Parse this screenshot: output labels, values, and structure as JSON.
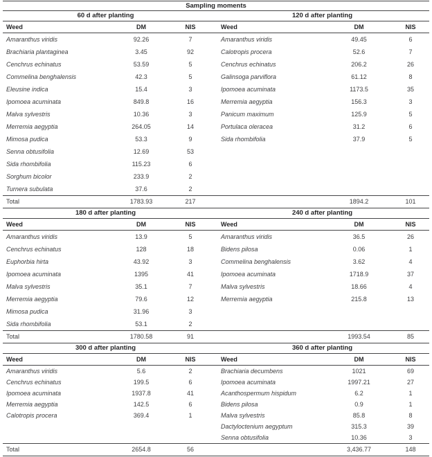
{
  "table": {
    "title": "Sampling moments",
    "col_headers": {
      "weed": "Weed",
      "dm": "DM",
      "nis": "NIS"
    },
    "total_label": "Total",
    "sections": [
      {
        "left": {
          "heading": "60 d after planting",
          "rows": [
            [
              "Amaranthus viridis",
              "92.26",
              "7"
            ],
            [
              "Brachiaria plantaginea",
              "3.45",
              "92"
            ],
            [
              "Cenchrus echinatus",
              "53.59",
              "5"
            ],
            [
              "Commelina benghalensis",
              "42.3",
              "5"
            ],
            [
              "Eleusine indica",
              "15.4",
              "3"
            ],
            [
              "Ipomoea acuminata",
              "849.8",
              "16"
            ],
            [
              "Malva sylvestris",
              "10.36",
              "3"
            ],
            [
              "Merremia aegyptia",
              "264.05",
              "14"
            ],
            [
              "Mimosa pudica",
              "53.3",
              "9"
            ],
            [
              "Senna obtusifolia",
              "12.69",
              "53"
            ],
            [
              "Sida rhombifolia",
              "115.23",
              "6"
            ],
            [
              "Sorghum bicolor",
              "233.9",
              "2"
            ],
            [
              "Turnera subulata",
              "37.6",
              "2"
            ]
          ],
          "total": [
            "1783.93",
            "217"
          ]
        },
        "right": {
          "heading": "120 d after planting",
          "rows": [
            [
              "Amaranthus viridis",
              "49.45",
              "6"
            ],
            [
              "Calotropis procera",
              "52.6",
              "7"
            ],
            [
              "Cenchrus echinatus",
              "206.2",
              "26"
            ],
            [
              "Galinsoga parviflora",
              "61.12",
              "8"
            ],
            [
              "Ipomoea acuminata",
              "1173.5",
              "35"
            ],
            [
              "Merremia aegyptia",
              "156.3",
              "3"
            ],
            [
              "Panicum maximum",
              "125.9",
              "5"
            ],
            [
              "Portulaca oleracea",
              "31.2",
              "6"
            ],
            [
              "Sida rhombifolia",
              "37.9",
              "5"
            ]
          ],
          "total": [
            "1894.2",
            "101"
          ]
        }
      },
      {
        "left": {
          "heading": "180 d after planting",
          "rows": [
            [
              "Amaranthus viridis",
              "13.9",
              "5"
            ],
            [
              "Cenchrus echinatus",
              "128",
              "18"
            ],
            [
              "Euphorbia hirta",
              "43.92",
              "3"
            ],
            [
              "Ipomoea acuminata",
              "1395",
              "41"
            ],
            [
              "Malva sylvestris",
              "35.1",
              "7"
            ],
            [
              "Merremia aegyptia",
              "79.6",
              "12"
            ],
            [
              "Mimosa pudica",
              "31.96",
              "3"
            ],
            [
              "Sida rhombifolia",
              "53.1",
              "2"
            ]
          ],
          "total": [
            "1780.58",
            "91"
          ]
        },
        "right": {
          "heading": "240 d after planting",
          "rows": [
            [
              "Amaranthus viridis",
              "36.5",
              "26"
            ],
            [
              "Bidens pilosa",
              "0.06",
              "1"
            ],
            [
              "Commelina benghalensis",
              "3.62",
              "4"
            ],
            [
              "Ipomoea acuminata",
              "1718.9",
              "37"
            ],
            [
              "Malva sylvestris",
              "18.66",
              "4"
            ],
            [
              "Merremia aegyptia",
              "215.8",
              "13"
            ]
          ],
          "total": [
            "1993.54",
            "85"
          ]
        }
      },
      {
        "left": {
          "heading": "300 d after planting",
          "rows": [
            [
              "Amaranthus viridis",
              "5.6",
              "2"
            ],
            [
              "Cenchrus echinatus",
              "199.5",
              "6"
            ],
            [
              "Ipomoea acuminata",
              "1937.8",
              "41"
            ],
            [
              "Merremia aegyptia",
              "142.5",
              "6"
            ],
            [
              "Calotropis procera",
              "369.4",
              "1"
            ]
          ],
          "total": [
            "2654.8",
            "56"
          ]
        },
        "right": {
          "heading": "360 d after planting",
          "rows": [
            [
              "Brachiaria decumbens",
              "1021",
              "69"
            ],
            [
              "Ipomoea acuminata",
              "1997.21",
              "27"
            ],
            [
              "Acanthospermum hispidum",
              "6.2",
              "1"
            ],
            [
              "Bidens pilosa",
              "0.9",
              "1"
            ],
            [
              "Malva sylvestris",
              "85.8",
              "8"
            ],
            [
              "Dactyloctenium aegyptum",
              "315.3",
              "39"
            ],
            [
              "Senna obtusifolia",
              "10.36",
              "3"
            ]
          ],
          "total": [
            "3,436.77",
            "148"
          ]
        }
      }
    ]
  }
}
